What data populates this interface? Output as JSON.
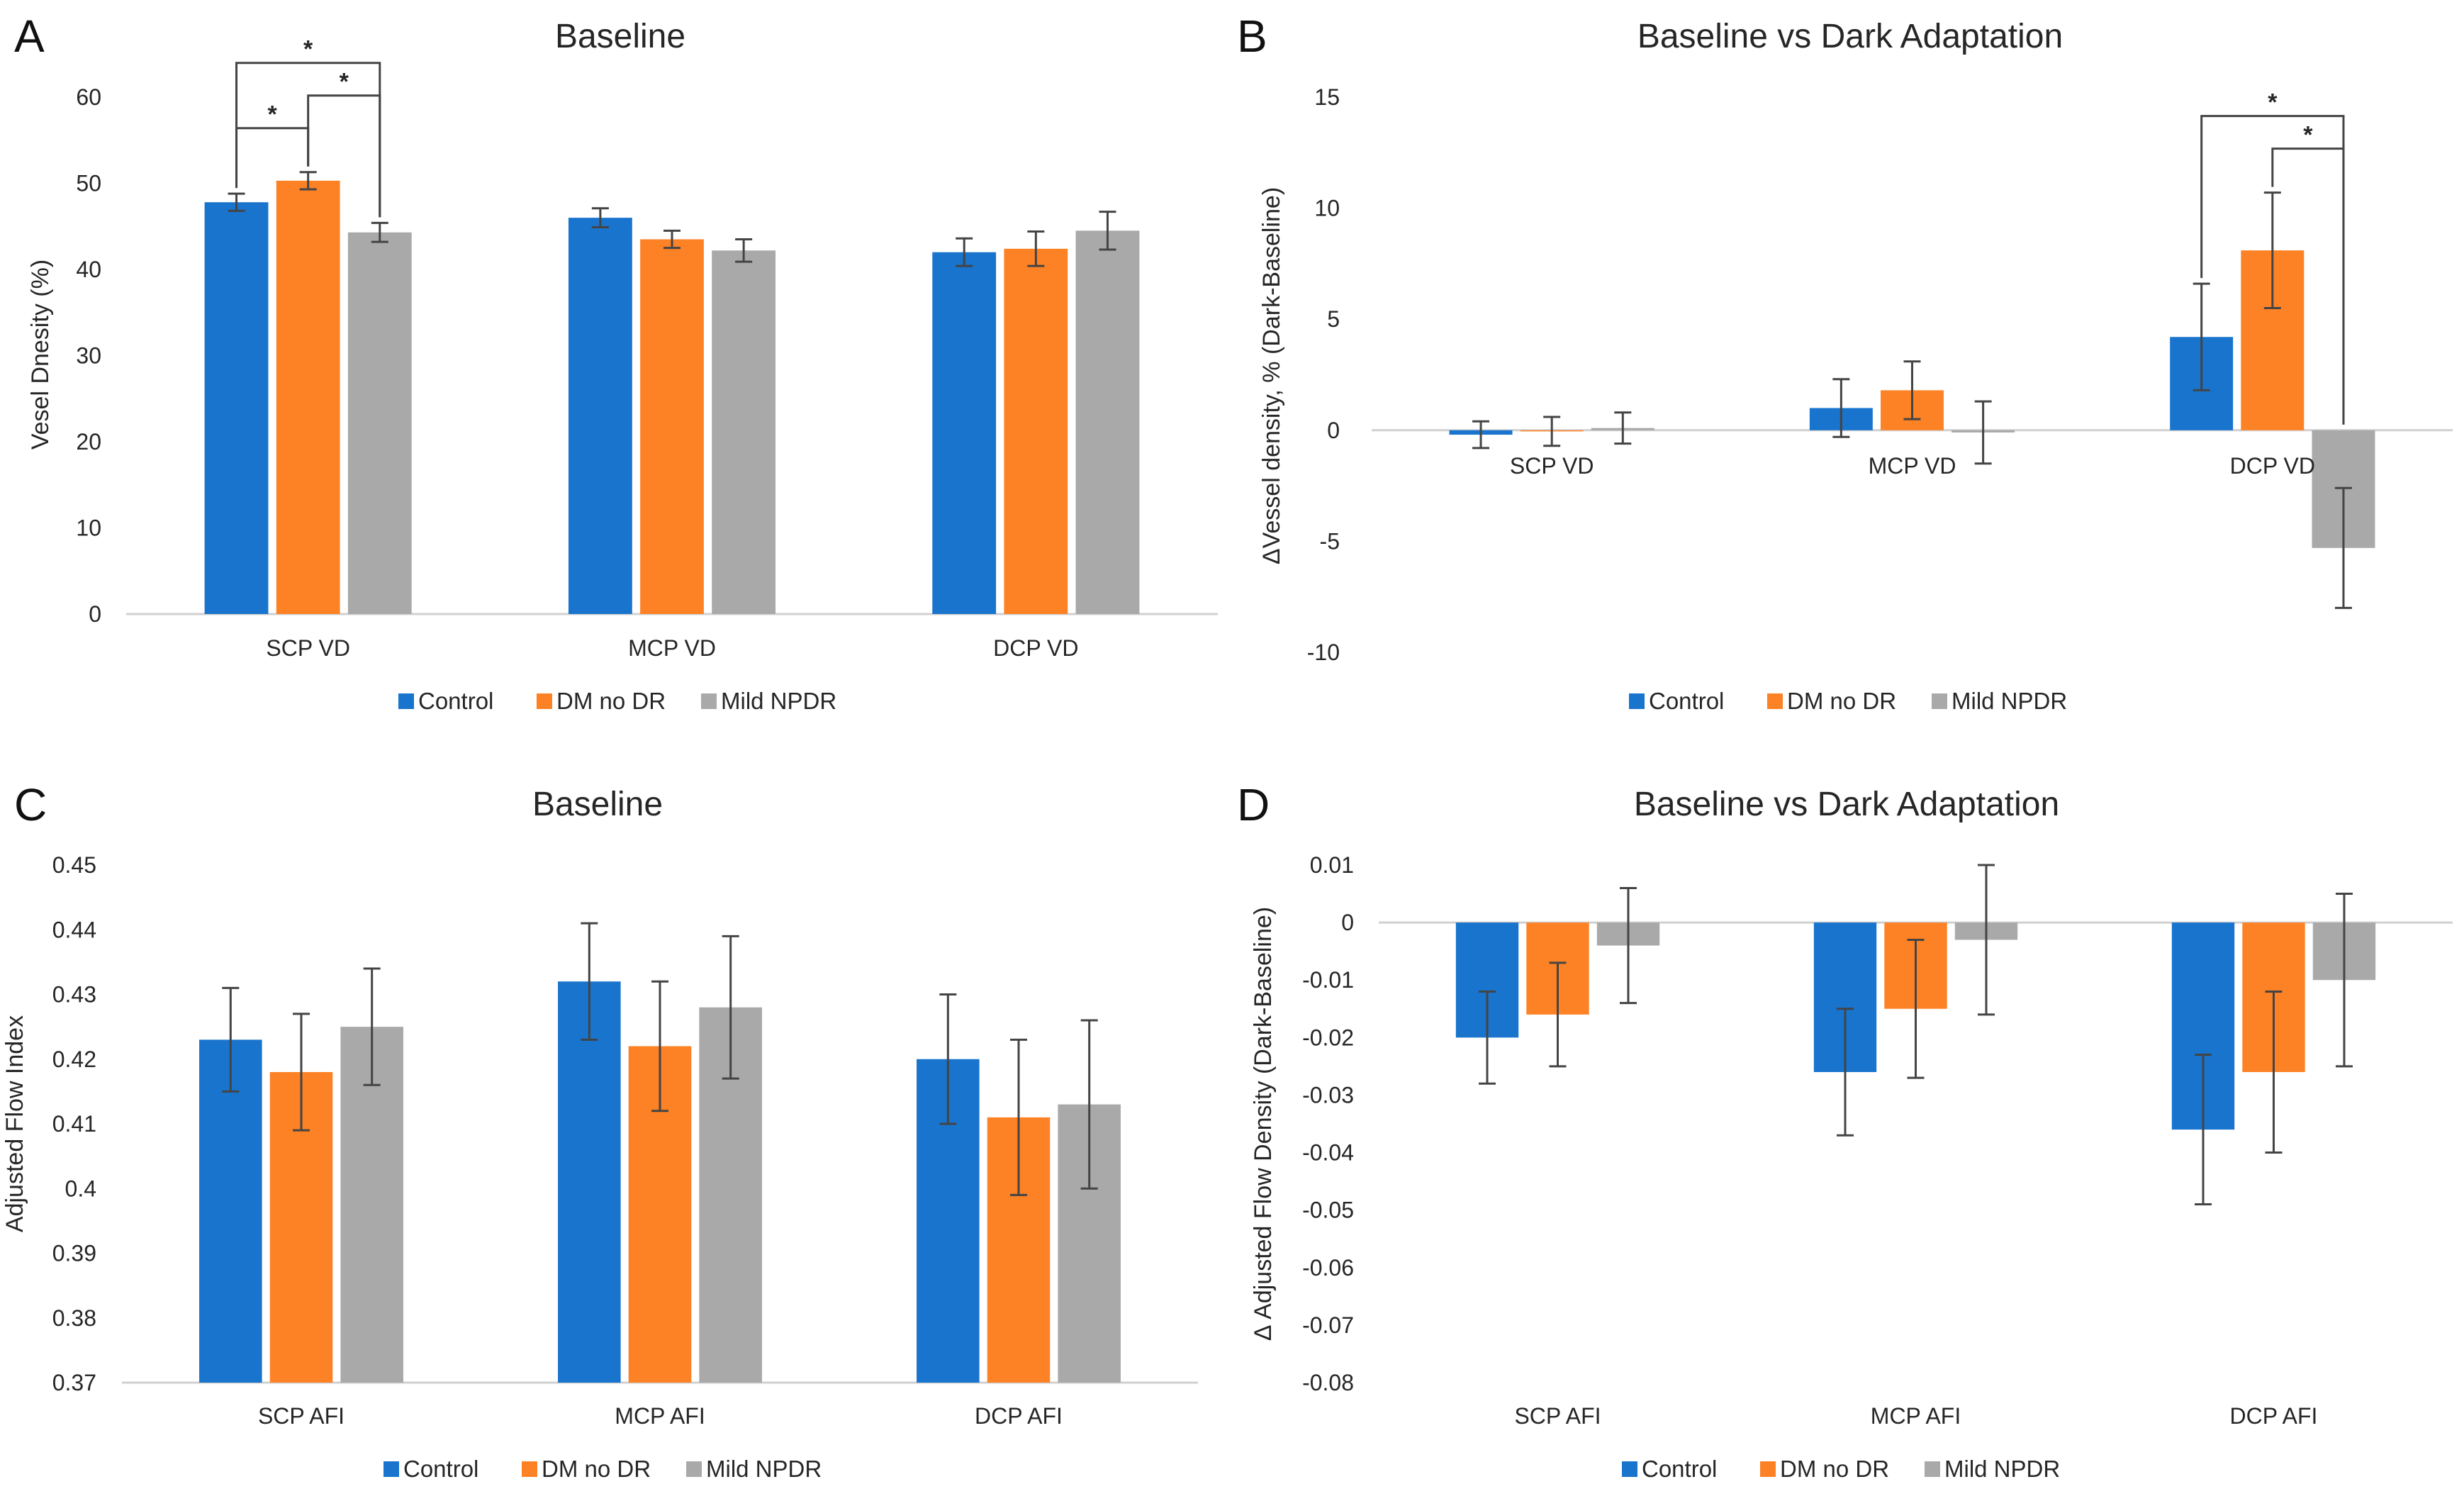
{
  "colors": {
    "control": "#1874cd",
    "dm_no_dr": "#fd8226",
    "mild_npdr": "#a9a9a9",
    "axis": "#d0d0d0",
    "error": "#444444",
    "text": "#262626"
  },
  "chart_data": [
    {
      "id": "A",
      "panel_label": "A",
      "type": "bar",
      "title": "Baseline",
      "xlabel": "",
      "ylabel": "Vesel Dnesity (%)",
      "ylim": [
        0,
        60
      ],
      "yticks": [
        0,
        10,
        20,
        30,
        40,
        50,
        60
      ],
      "ytick_labels": [
        "0",
        "10",
        "20",
        "30",
        "40",
        "50",
        "60"
      ],
      "categories": [
        "SCP VD",
        "MCP VD",
        "DCP VD"
      ],
      "series": [
        {
          "name": "Control",
          "values": [
            47.8,
            46.0,
            42.0
          ],
          "errors": [
            1.0,
            1.1,
            1.6
          ]
        },
        {
          "name": "DM no DR",
          "values": [
            50.3,
            43.5,
            42.4
          ],
          "errors": [
            1.0,
            1.0,
            2.0
          ]
        },
        {
          "name": "Mild NPDR",
          "values": [
            44.3,
            42.2,
            44.5
          ],
          "errors": [
            1.1,
            1.3,
            2.2
          ]
        }
      ],
      "significance": [
        {
          "from_series": 0,
          "to_series": 1,
          "category": 0,
          "label": "*"
        },
        {
          "from_series": 1,
          "to_series": 2,
          "category": 0,
          "label": "*"
        },
        {
          "from_series": 0,
          "to_series": 2,
          "category": 0,
          "label": "*"
        }
      ],
      "legend": [
        "Control",
        "DM no DR",
        "Mild NPDR"
      ],
      "legend_position": "bottom",
      "category_labels_inside": false,
      "grid": false
    },
    {
      "id": "B",
      "panel_label": "B",
      "type": "bar",
      "title": "Baseline vs Dark Adaptation",
      "xlabel": "",
      "ylabel": "ΔVessel density, % (Dark-Baseline)",
      "ylim": [
        -10,
        15
      ],
      "yticks": [
        -10,
        -5,
        0,
        5,
        10,
        15
      ],
      "ytick_labels": [
        "-10",
        "-5",
        "0",
        "5",
        "10",
        "15"
      ],
      "categories": [
        "SCP VD",
        "MCP VD",
        "DCP VD"
      ],
      "series": [
        {
          "name": "Control",
          "values": [
            -0.2,
            1.0,
            4.2
          ],
          "errors": [
            0.6,
            1.3,
            2.4
          ]
        },
        {
          "name": "DM no DR",
          "values": [
            -0.05,
            1.8,
            8.1
          ],
          "errors": [
            0.65,
            1.3,
            2.6
          ]
        },
        {
          "name": "Mild NPDR",
          "values": [
            0.1,
            -0.1,
            -5.3
          ],
          "errors": [
            0.7,
            1.4,
            2.7
          ]
        }
      ],
      "significance": [
        {
          "from_series": 0,
          "to_series": 2,
          "category": 2,
          "label": "*"
        },
        {
          "from_series": 1,
          "to_series": 2,
          "category": 2,
          "label": "*"
        }
      ],
      "legend": [
        "Control",
        "DM no DR",
        "Mild NPDR"
      ],
      "legend_position": "bottom",
      "category_labels_inside": true,
      "grid": false
    },
    {
      "id": "C",
      "panel_label": "C",
      "type": "bar",
      "title": "Baseline",
      "xlabel": "",
      "ylabel": "Adjusted Flow Index",
      "ylim": [
        0.37,
        0.45
      ],
      "yticks": [
        0.37,
        0.38,
        0.39,
        0.4,
        0.41,
        0.42,
        0.43,
        0.44,
        0.45
      ],
      "ytick_labels": [
        "0.37",
        "0.38",
        "0.39",
        "0.4",
        "0.41",
        "0.42",
        "0.43",
        "0.44",
        "0.45"
      ],
      "categories": [
        "SCP AFI",
        "MCP AFI",
        "DCP AFI"
      ],
      "series": [
        {
          "name": "Control",
          "values": [
            0.423,
            0.432,
            0.42
          ],
          "errors": [
            0.008,
            0.009,
            0.01
          ]
        },
        {
          "name": "DM no DR",
          "values": [
            0.418,
            0.422,
            0.411
          ],
          "errors": [
            0.009,
            0.01,
            0.012
          ]
        },
        {
          "name": "Mild NPDR",
          "values": [
            0.425,
            0.428,
            0.413
          ],
          "errors": [
            0.009,
            0.011,
            0.013
          ]
        }
      ],
      "significance": [],
      "legend": [
        "Control",
        "DM no DR",
        "Mild NPDR"
      ],
      "legend_position": "bottom",
      "category_labels_inside": false,
      "grid": false
    },
    {
      "id": "D",
      "panel_label": "D",
      "type": "bar",
      "title": "Baseline vs Dark Adaptation",
      "xlabel": "",
      "ylabel": "Δ Adjusted Flow Density (Dark-Baseline)",
      "ylim": [
        -0.08,
        0.01
      ],
      "yticks": [
        -0.08,
        -0.07,
        -0.06,
        -0.05,
        -0.04,
        -0.03,
        -0.02,
        -0.01,
        0,
        0.01
      ],
      "ytick_labels": [
        "-0.08",
        "-0.07",
        "-0.06",
        "-0.05",
        "-0.04",
        "-0.03",
        "-0.02",
        "-0.01",
        "0",
        "0.01"
      ],
      "categories": [
        "SCP AFI",
        "MCP AFI",
        "DCP AFI"
      ],
      "series": [
        {
          "name": "Control",
          "values": [
            -0.02,
            -0.026,
            -0.036
          ],
          "errors": [
            0.008,
            0.011,
            0.013
          ]
        },
        {
          "name": "DM no DR",
          "values": [
            -0.016,
            -0.015,
            -0.026
          ],
          "errors": [
            0.009,
            0.012,
            0.014
          ]
        },
        {
          "name": "Mild NPDR",
          "values": [
            -0.004,
            -0.003,
            -0.01
          ],
          "errors": [
            0.01,
            0.013,
            0.015
          ]
        }
      ],
      "significance": [],
      "legend": [
        "Control",
        "DM no DR",
        "Mild NPDR"
      ],
      "legend_position": "bottom",
      "category_labels_inside": false,
      "grid": false
    }
  ]
}
